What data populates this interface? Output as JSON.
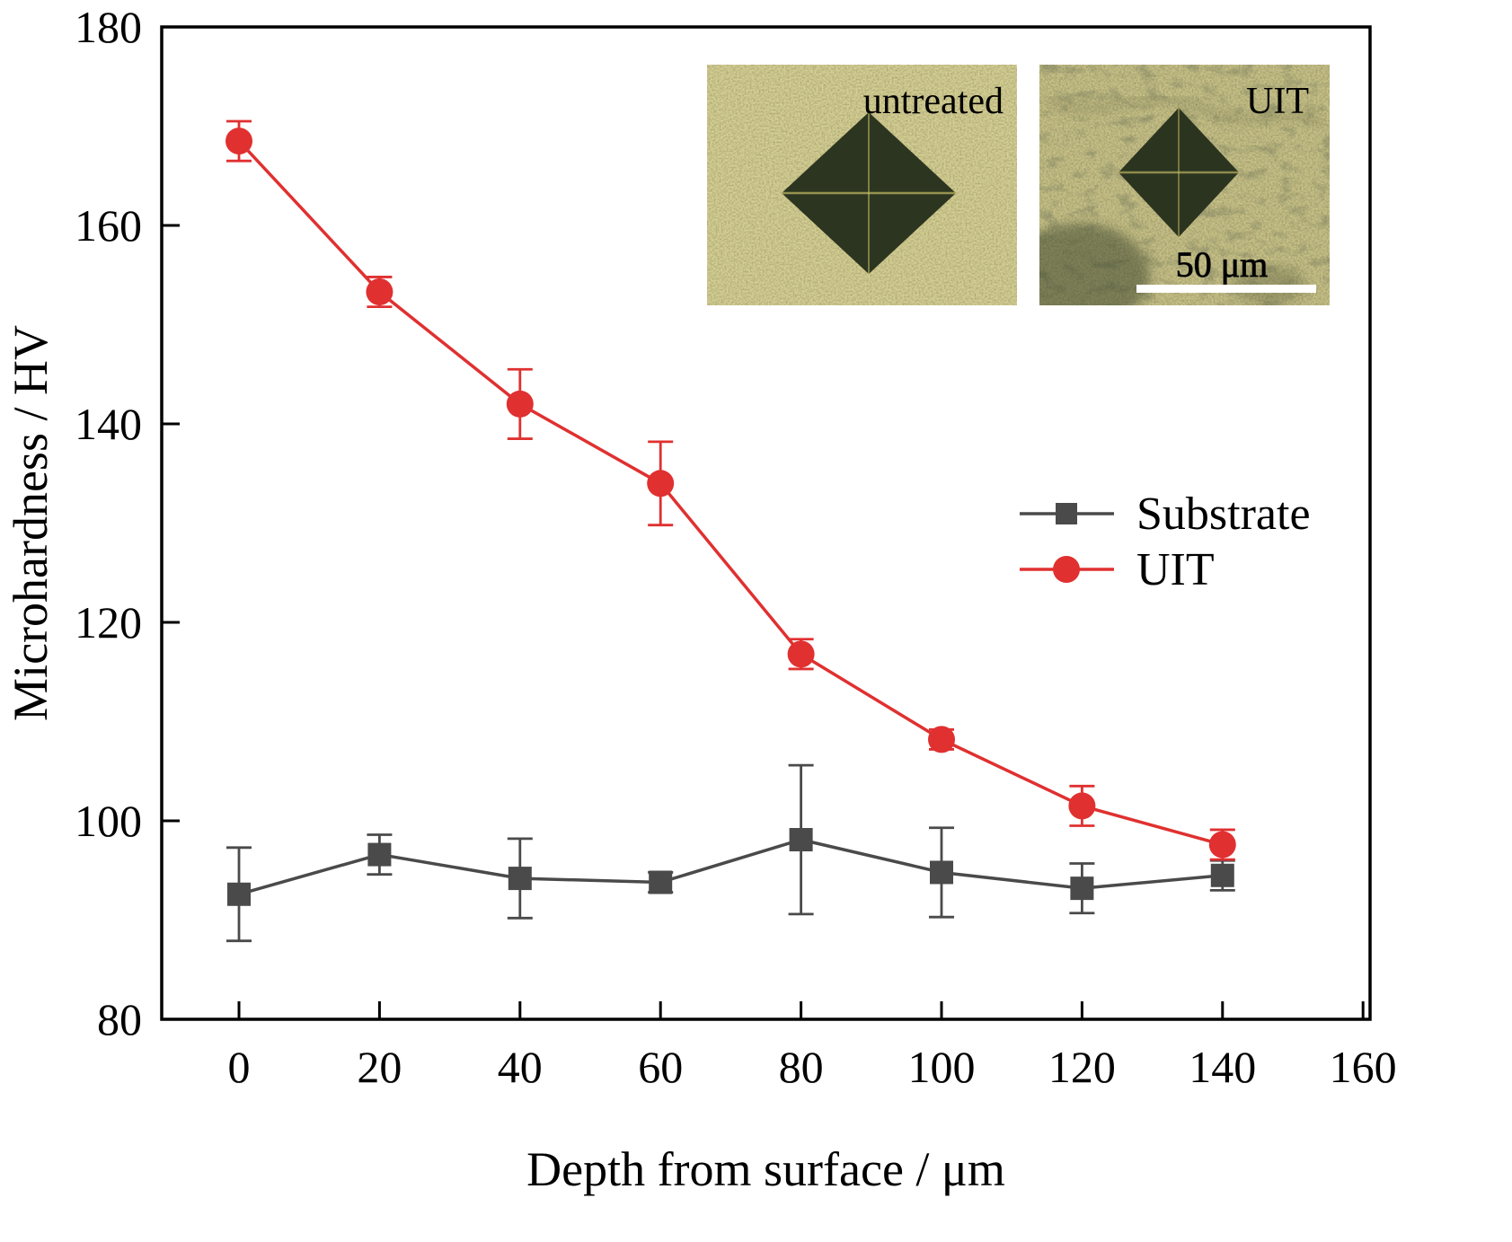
{
  "chart_data": {
    "type": "line",
    "x": [
      0,
      20,
      40,
      60,
      80,
      100,
      120,
      140
    ],
    "series": [
      {
        "name": "Substrate",
        "color": "#4a4a4a",
        "marker": "square",
        "values": [
          92.6,
          96.6,
          94.2,
          93.8,
          98.1,
          94.8,
          93.2,
          94.5
        ],
        "errors": [
          4.7,
          2.0,
          4.0,
          1.0,
          7.5,
          4.5,
          2.5,
          1.5
        ]
      },
      {
        "name": "UIT",
        "color": "#e03030",
        "marker": "circle",
        "values": [
          168.5,
          153.3,
          142.0,
          134.0,
          116.8,
          108.2,
          101.5,
          97.6
        ],
        "errors": [
          2.0,
          1.5,
          3.5,
          4.2,
          1.5,
          1.0,
          2.0,
          1.5
        ]
      }
    ],
    "xlabel": "Depth from surface / μm",
    "ylabel": "Microhardness / HV",
    "xlim": [
      -11,
      161
    ],
    "ylim": [
      80,
      180
    ],
    "xticks": [
      0,
      20,
      40,
      60,
      80,
      100,
      120,
      140,
      160
    ],
    "yticks": [
      80,
      100,
      120,
      140,
      160,
      180
    ],
    "grid": false,
    "legend_position": "center-right",
    "legend": [
      "Substrate",
      "UIT"
    ]
  },
  "insets": {
    "untreated": {
      "label": "untreated"
    },
    "uit": {
      "label": "UIT",
      "scalebar": "50 μm"
    }
  }
}
